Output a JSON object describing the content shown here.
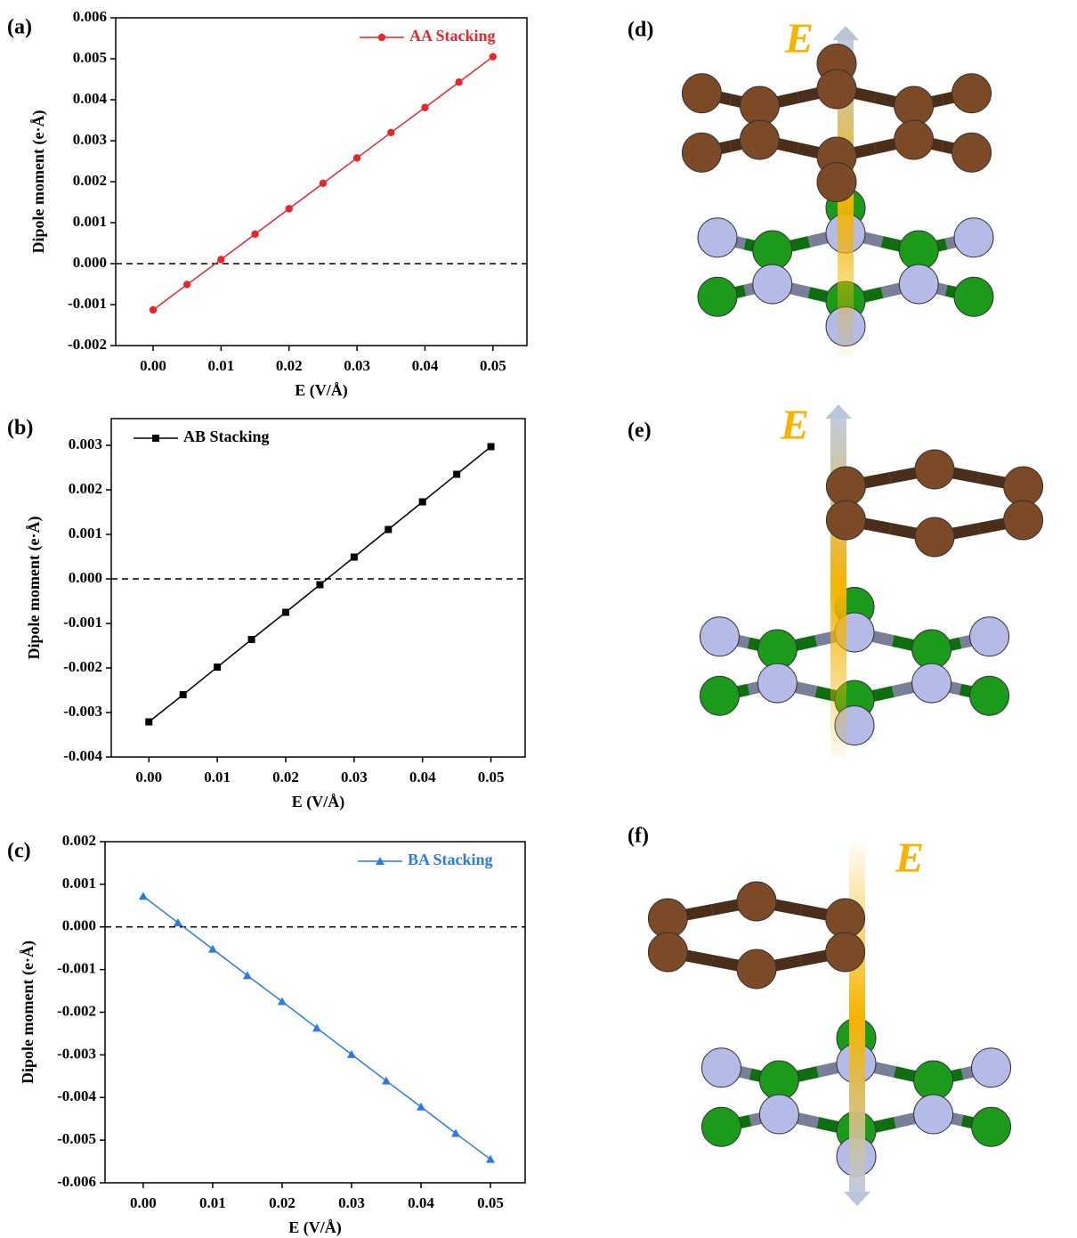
{
  "chart_data": [
    {
      "type": "line",
      "panel_label": "(a)",
      "xlabel": "E (V/Å)",
      "ylabel": "Dipole moment (e·Å)",
      "x": [
        0,
        0.005,
        0.01,
        0.015,
        0.02,
        0.025,
        0.03,
        0.035,
        0.04,
        0.045,
        0.05
      ],
      "series": [
        {
          "name": "AA Stacking",
          "color": "#e8262a",
          "marker": "circle",
          "values": [
            -0.00113,
            -0.00051,
            0.0001,
            0.00072,
            0.00134,
            0.00196,
            0.00258,
            0.0032,
            0.00381,
            0.00443,
            0.00505
          ]
        }
      ],
      "xlim": [
        -0.0055,
        0.055
      ],
      "xticks": [
        {
          "value": 0,
          "label": "0.00"
        },
        {
          "value": 0.01,
          "label": "0.01"
        },
        {
          "value": 0.02,
          "label": "0.02"
        },
        {
          "value": 0.03,
          "label": "0.03"
        },
        {
          "value": 0.04,
          "label": "0.04"
        },
        {
          "value": 0.05,
          "label": "0.05"
        }
      ],
      "ylim": [
        -0.002,
        0.006
      ],
      "yticks": [
        {
          "value": -0.002,
          "label": "-0.002"
        },
        {
          "value": -0.001,
          "label": "-0.001"
        },
        {
          "value": 0,
          "label": "0.000"
        },
        {
          "value": 0.001,
          "label": "0.001"
        },
        {
          "value": 0.002,
          "label": "0.002"
        },
        {
          "value": 0.003,
          "label": "0.003"
        },
        {
          "value": 0.004,
          "label": "0.004"
        },
        {
          "value": 0.005,
          "label": "0.005"
        },
        {
          "value": 0.006,
          "label": "0.006"
        }
      ],
      "reference_line": 0,
      "legend": "upper right"
    },
    {
      "type": "line",
      "panel_label": "(b)",
      "xlabel": "E (V/Å)",
      "ylabel": "Dipole moment (e·Å)",
      "x": [
        0,
        0.005,
        0.01,
        0.015,
        0.02,
        0.025,
        0.03,
        0.035,
        0.04,
        0.045,
        0.05
      ],
      "series": [
        {
          "name": "AB Stacking",
          "color": "#000000",
          "marker": "square",
          "values": [
            -0.00321,
            -0.0026,
            -0.00198,
            -0.00136,
            -0.00075,
            -0.00013,
            0.00049,
            0.00111,
            0.00173,
            0.00235,
            0.00297
          ]
        }
      ],
      "xlim": [
        -0.0055,
        0.055
      ],
      "xticks": [
        {
          "value": 0,
          "label": "0.00"
        },
        {
          "value": 0.01,
          "label": "0.01"
        },
        {
          "value": 0.02,
          "label": "0.02"
        },
        {
          "value": 0.03,
          "label": "0.03"
        },
        {
          "value": 0.04,
          "label": "0.04"
        },
        {
          "value": 0.05,
          "label": "0.05"
        }
      ],
      "ylim": [
        -0.004,
        0.0036
      ],
      "yticks": [
        {
          "value": -0.004,
          "label": "-0.004"
        },
        {
          "value": -0.003,
          "label": "-0.003"
        },
        {
          "value": -0.002,
          "label": "-0.002"
        },
        {
          "value": -0.001,
          "label": "-0.001"
        },
        {
          "value": 0,
          "label": "0.000"
        },
        {
          "value": 0.001,
          "label": "0.001"
        },
        {
          "value": 0.002,
          "label": "0.002"
        },
        {
          "value": 0.003,
          "label": "0.003"
        }
      ],
      "reference_line": 0,
      "legend": "upper left"
    },
    {
      "type": "line",
      "panel_label": "(c)",
      "xlabel": "E (V/Å)",
      "ylabel": "Dipole moment (e·Å)",
      "x": [
        0,
        0.005,
        0.01,
        0.015,
        0.02,
        0.025,
        0.03,
        0.035,
        0.04,
        0.045,
        0.05
      ],
      "series": [
        {
          "name": "BA Stacking",
          "color": "#2a7be0",
          "marker": "triangle",
          "values": [
            0.00072,
            0.0001,
            -0.00052,
            -0.00114,
            -0.00175,
            -0.00237,
            -0.00299,
            -0.00361,
            -0.00422,
            -0.00484,
            -0.00545
          ]
        }
      ],
      "xlim": [
        -0.0055,
        0.055
      ],
      "xticks": [
        {
          "value": 0,
          "label": "0.00"
        },
        {
          "value": 0.01,
          "label": "0.01"
        },
        {
          "value": 0.02,
          "label": "0.02"
        },
        {
          "value": 0.03,
          "label": "0.03"
        },
        {
          "value": 0.04,
          "label": "0.04"
        },
        {
          "value": 0.05,
          "label": "0.05"
        }
      ],
      "ylim": [
        -0.006,
        0.002
      ],
      "yticks": [
        {
          "value": -0.006,
          "label": "-0.006"
        },
        {
          "value": -0.005,
          "label": "-0.005"
        },
        {
          "value": -0.004,
          "label": "-0.004"
        },
        {
          "value": -0.003,
          "label": "-0.003"
        },
        {
          "value": -0.002,
          "label": "-0.002"
        },
        {
          "value": -0.001,
          "label": "-0.001"
        },
        {
          "value": 0,
          "label": "0.000"
        },
        {
          "value": 0.001,
          "label": "0.001"
        },
        {
          "value": 0.002,
          "label": "0.002"
        }
      ],
      "reference_line": 0,
      "legend": "upper right"
    }
  ],
  "diagrams": [
    {
      "panel_label": "(d)",
      "field_label": "E"
    },
    {
      "panel_label": "(e)",
      "field_label": "E"
    },
    {
      "panel_label": "(f)",
      "field_label": "E"
    }
  ]
}
